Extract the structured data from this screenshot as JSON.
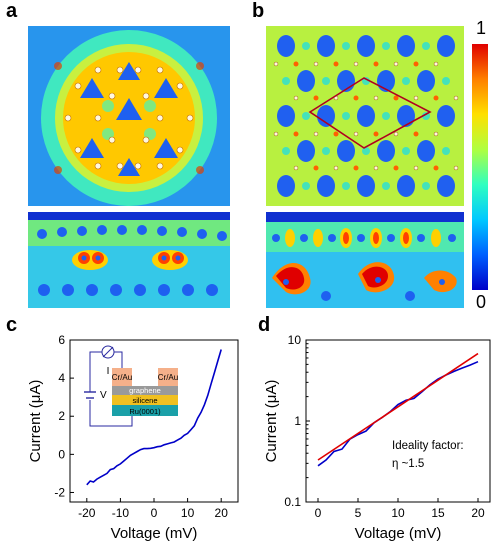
{
  "panels": {
    "a": "a",
    "b": "b",
    "c": "c",
    "d": "d"
  },
  "colorbar": {
    "max_label": "1",
    "min_label": "0",
    "stops": [
      "#0000c8",
      "#0060ff",
      "#00c8ff",
      "#30ffc0",
      "#b0ff40",
      "#ffe000",
      "#ff8000",
      "#e00000"
    ]
  },
  "maps": {
    "background_color": "#2a8cff",
    "mid_color": "#35e0c0",
    "ring_color": "#ffd000",
    "hot_color": "#ff4000",
    "atom_color": "#fff8e0",
    "rhombus_color": "#b00020"
  },
  "inset": {
    "meter_label": "I",
    "source_label": "V",
    "contact_left": "Cr/Au",
    "contact_right": "Cr/Au",
    "layer_graphene": "graphene",
    "layer_silicene": "silicene",
    "layer_substrate": "Ru(0001)",
    "colors": {
      "contact": "#f5b08a",
      "graphene": "#9a9a9a",
      "silicene": "#f0c020",
      "substrate": "#1aa0a8"
    }
  },
  "annotation": {
    "line1": "Ideality factor:",
    "line2": "η ~1.5"
  },
  "chart_data": [
    {
      "id": "c",
      "type": "line",
      "xlabel": "Voltage (mV)",
      "ylabel": "Current (μA)",
      "xlim": [
        -25,
        25
      ],
      "ylim": [
        -2.5,
        6
      ],
      "xticks": [
        -20,
        -10,
        0,
        10,
        20
      ],
      "yticks": [
        -2,
        0,
        2,
        4,
        6
      ],
      "series": [
        {
          "color": "#0000c8",
          "x": [
            -20,
            -19,
            -18,
            -17,
            -16,
            -15,
            -14,
            -13,
            -12,
            -11,
            -10,
            -9,
            -8,
            -7,
            -6,
            -5,
            -4,
            -3,
            -2,
            -1,
            0,
            1,
            2,
            3,
            4,
            5,
            6,
            7,
            8,
            9,
            10,
            11,
            12,
            13,
            14,
            15,
            16,
            17,
            18,
            19,
            20
          ],
          "y": [
            -1.6,
            -1.4,
            -1.45,
            -1.3,
            -1.2,
            -1.1,
            -1.0,
            -0.8,
            -0.75,
            -0.6,
            -0.5,
            -0.35,
            -0.2,
            -0.05,
            0.05,
            0.15,
            0.25,
            0.3,
            0.3,
            0.32,
            0.35,
            0.4,
            0.42,
            0.5,
            0.55,
            0.6,
            0.65,
            0.75,
            0.85,
            1.0,
            1.1,
            1.3,
            1.5,
            1.9,
            2.2,
            2.6,
            3.1,
            3.7,
            4.3,
            4.9,
            5.5
          ]
        }
      ]
    },
    {
      "id": "d",
      "type": "line",
      "xlabel": "Voltage (mV)",
      "ylabel": "Current (μA)",
      "xlim": [
        -1.5,
        21.5
      ],
      "ylim": [
        0.1,
        10
      ],
      "yscale": "log",
      "xticks": [
        0,
        5,
        10,
        15,
        20
      ],
      "yticks": [
        0.1,
        1,
        10
      ],
      "ytick_labels": [
        "0.1",
        "1",
        "10"
      ],
      "series": [
        {
          "color": "#0000c8",
          "x": [
            0,
            1,
            2,
            3,
            4,
            5,
            6,
            7,
            8,
            9,
            10,
            11,
            12,
            13,
            14,
            15,
            16,
            17,
            18,
            19,
            20
          ],
          "y": [
            0.28,
            0.33,
            0.42,
            0.45,
            0.6,
            0.68,
            0.75,
            0.95,
            1.1,
            1.3,
            1.6,
            1.8,
            1.9,
            2.3,
            2.8,
            3.3,
            3.7,
            4.1,
            4.5,
            4.9,
            5.4
          ]
        },
        {
          "color": "#e00000",
          "x": [
            0,
            20
          ],
          "y": [
            0.33,
            6.8
          ]
        }
      ]
    }
  ]
}
